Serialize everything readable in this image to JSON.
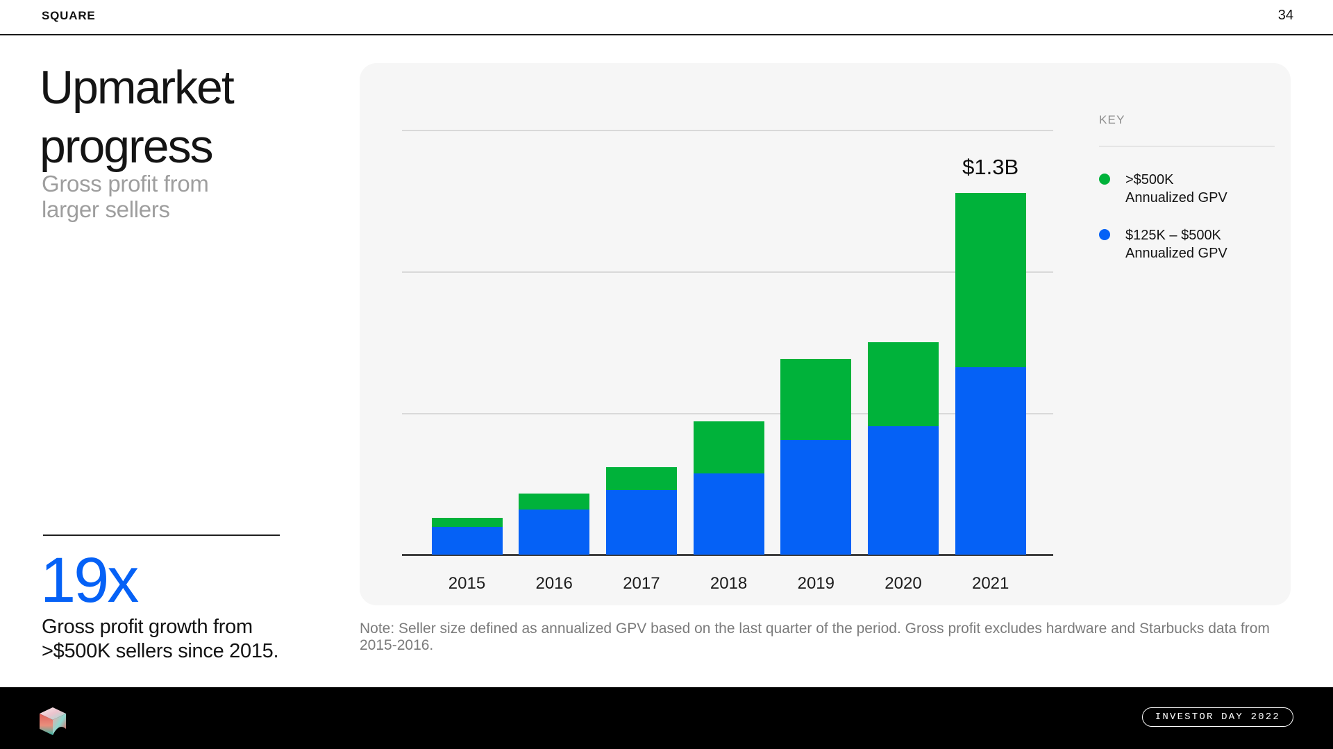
{
  "header": {
    "brand": "SQUARE",
    "page_number": "34"
  },
  "slide": {
    "title_line1": "Upmarket",
    "title_line2": "progress",
    "subtitle_line1": "Gross profit from",
    "subtitle_line2": "larger sellers",
    "stat_value": "19x",
    "stat_caption_line1": "Gross profit growth from",
    "stat_caption_line2": ">$500K sellers since 2015.",
    "note": "Note: Seller size defined as annualized GPV based on the last quarter of the period. Gross profit excludes hardware and Starbucks data from 2015-2016."
  },
  "legend": {
    "title": "KEY",
    "items": [
      {
        "color": "#00b23a",
        "label_line1": ">$500K",
        "label_line2": "Annualized GPV"
      },
      {
        "color": "#0561f6",
        "label_line1": "$125K – $500K",
        "label_line2": "Annualized GPV"
      }
    ]
  },
  "chart_data": {
    "type": "bar",
    "stacked": true,
    "title": "Gross profit from larger sellers",
    "categories": [
      "2015",
      "2016",
      "2017",
      "2018",
      "2019",
      "2020",
      "2021"
    ],
    "series": [
      {
        "name": "$125K – $500K Annualized GPV",
        "color": "#0561f6",
        "values_musd": [
          98,
          160,
          229,
          287,
          406,
          455,
          663
        ]
      },
      {
        "name": ">$500K Annualized GPV",
        "color": "#00b23a",
        "values_musd": [
          32,
          56,
          81,
          184,
          287,
          297,
          615
        ]
      }
    ],
    "totals_musd": [
      130,
      216,
      310,
      471,
      693,
      752,
      1278
    ],
    "total_label": {
      "category": "2021",
      "text": "$1.3B"
    },
    "ylim_musd": [
      0,
      1600
    ],
    "gridlines_musd": [
      500,
      1000,
      1500
    ],
    "grid": true,
    "y_axis_labels_visible": false,
    "legend_position": "right"
  },
  "footer": {
    "logo_name": "block-cube-logo",
    "badge": "INVESTOR DAY 2022"
  },
  "colors": {
    "accent_blue": "#0561f6",
    "accent_green": "#00b23a",
    "card_background": "#f6f6f6",
    "gridline": "#d9d9d9",
    "axis_line": "#3f3f3f",
    "footer_background": "#000000"
  }
}
